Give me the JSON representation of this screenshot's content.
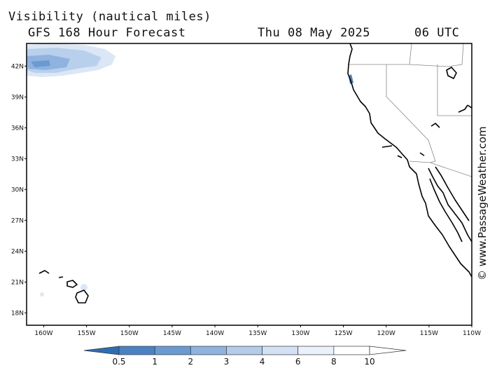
{
  "header": {
    "title": "Visibility (nautical miles)",
    "subtitle": "GFS 168 Hour Forecast",
    "date": "Thu 08 May 2025",
    "time": "06 UTC"
  },
  "credit": "© www.PassageWeather.com",
  "map": {
    "lon_range": [
      -162,
      -110
    ],
    "lat_range": [
      16.8,
      44.2
    ],
    "lat_labels": [
      {
        "lat": 42,
        "label": "42N"
      },
      {
        "lat": 39,
        "label": "39N"
      },
      {
        "lat": 36,
        "label": "36N"
      },
      {
        "lat": 33,
        "label": "33N"
      },
      {
        "lat": 30,
        "label": "30N"
      },
      {
        "lat": 27,
        "label": "27N"
      },
      {
        "lat": 24,
        "label": "24N"
      },
      {
        "lat": 21,
        "label": "21N"
      },
      {
        "lat": 18,
        "label": "18N"
      }
    ],
    "lon_labels": [
      {
        "lon": -160,
        "label": "160W"
      },
      {
        "lon": -155,
        "label": "155W"
      },
      {
        "lon": -150,
        "label": "150W"
      },
      {
        "lon": -145,
        "label": "145W"
      },
      {
        "lon": -140,
        "label": "140W"
      },
      {
        "lon": -135,
        "label": "135W"
      },
      {
        "lon": -130,
        "label": "130W"
      },
      {
        "lon": -125,
        "label": "125W"
      },
      {
        "lon": -120,
        "label": "120W"
      },
      {
        "lon": -115,
        "label": "115W"
      },
      {
        "lon": -110,
        "label": "110W"
      }
    ]
  },
  "legend": {
    "labels": [
      "0.5",
      "1",
      "2",
      "3",
      "4",
      "6",
      "8",
      "10"
    ],
    "colors": [
      "#2f6db3",
      "#4a82c4",
      "#6a9ad2",
      "#8fb3de",
      "#b3cce9",
      "#d2e1f3",
      "#eaf1fa",
      "#ffffff"
    ]
  },
  "colors": {
    "coast": "#000000",
    "border": "#888888",
    "low_visibility": "#8fb3de"
  }
}
